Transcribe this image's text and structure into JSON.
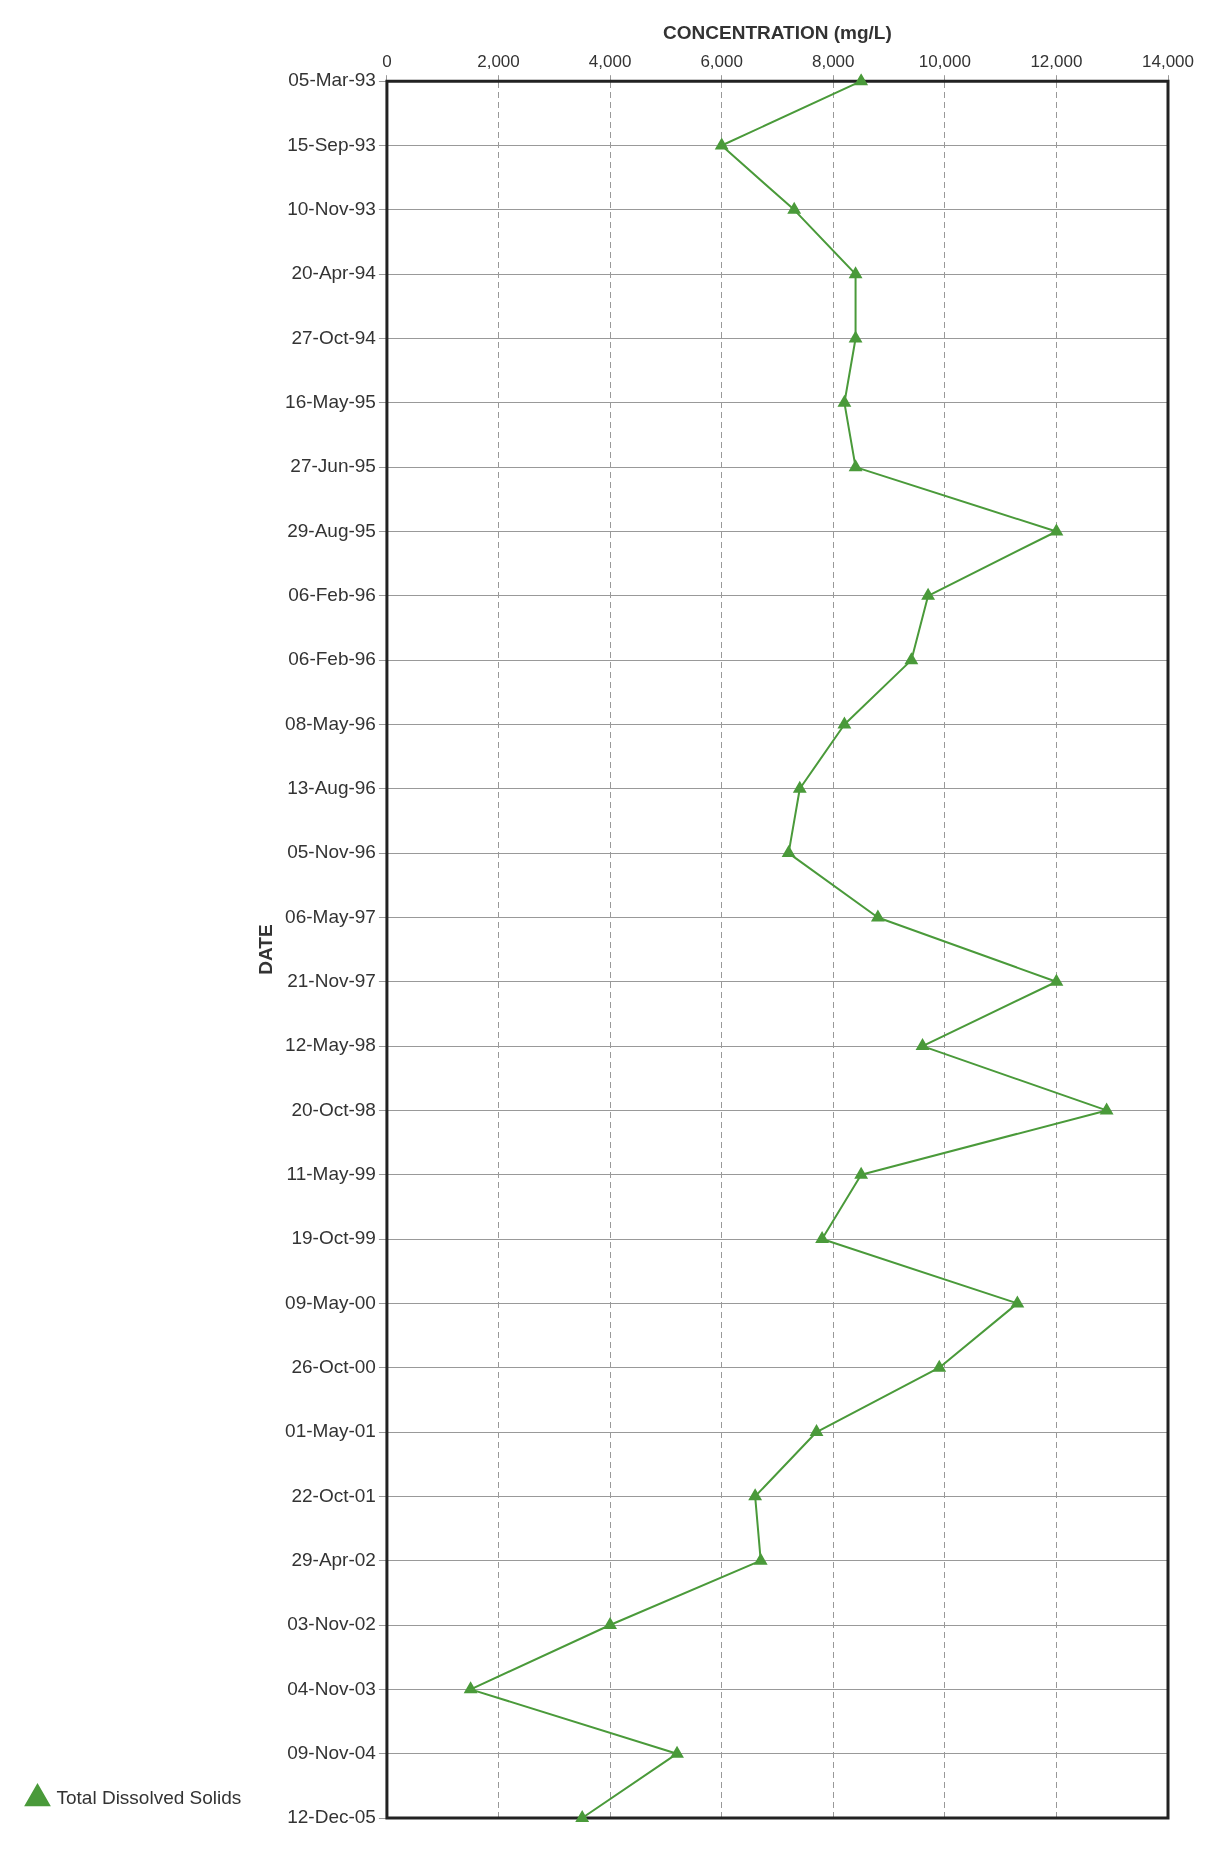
{
  "chart_data": {
    "type": "line",
    "orientation": "horizontal",
    "xlabel": "CONCENTRATION (mg/L)",
    "ylabel": "DATE",
    "categories": [
      "05-Mar-93",
      "15-Sep-93",
      "10-Nov-93",
      "20-Apr-94",
      "27-Oct-94",
      "16-May-95",
      "27-Jun-95",
      "29-Aug-95",
      "06-Feb-96",
      "06-Feb-96",
      "08-May-96",
      "13-Aug-96",
      "05-Nov-96",
      "06-May-97",
      "21-Nov-97",
      "12-May-98",
      "20-Oct-98",
      "11-May-99",
      "19-Oct-99",
      "09-May-00",
      "26-Oct-00",
      "01-May-01",
      "22-Oct-01",
      "29-Apr-02",
      "03-Nov-02",
      "04-Nov-03",
      "09-Nov-04",
      "12-Dec-05"
    ],
    "series": [
      {
        "name": "Total Dissolved Solids",
        "color": "#4a9a3a",
        "values": [
          8500,
          6000,
          7300,
          8400,
          8400,
          8200,
          8400,
          12000,
          9700,
          9400,
          8200,
          7400,
          7200,
          8800,
          12000,
          9600,
          12900,
          8500,
          7800,
          11300,
          9900,
          7700,
          6600,
          6700,
          4000,
          1500,
          5200,
          3500
        ]
      }
    ],
    "xlim": [
      0,
      14000
    ],
    "xticks": [
      0,
      {
        "value": 2000,
        "label": "2,000"
      },
      {
        "value": 4000,
        "label": "4,000"
      },
      {
        "value": 6000,
        "label": "6,000"
      },
      {
        "value": 8000,
        "label": "8,000"
      },
      {
        "value": 10000,
        "label": "10,000"
      },
      {
        "value": 12000,
        "label": "12,000"
      },
      {
        "value": 14000,
        "label": "14,000"
      }
    ],
    "grid": true,
    "line_style": "solid",
    "marker": "triangle",
    "legend": "left"
  }
}
